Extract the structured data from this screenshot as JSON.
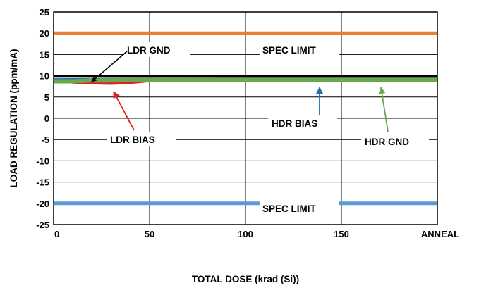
{
  "chart_data": {
    "type": "line",
    "xlabel": "TOTAL DOSE (krad (Si))",
    "ylabel": "LOAD REGULATION (ppm/mA)",
    "xlim": [
      0,
      200
    ],
    "ylim": [
      -25,
      25
    ],
    "x_ticks": [
      0,
      50,
      100,
      150,
      200
    ],
    "x_tick_labels": [
      "0",
      "50",
      "100",
      "150",
      "ANNEAL"
    ],
    "y_ticks": [
      25,
      20,
      15,
      10,
      5,
      0,
      -5,
      -10,
      -15,
      -20,
      -25
    ],
    "y_tick_labels": [
      "25",
      "20",
      "15",
      "10",
      "5",
      "0",
      "-5",
      "-10",
      "-15",
      "-20",
      "-25"
    ],
    "grid": true,
    "spec_limits": [
      {
        "value": 20,
        "color": "#ed7d31"
      },
      {
        "value": -20,
        "color": "#5b9bd5"
      }
    ],
    "series": [
      {
        "name": "HDR BIAS",
        "color": "#1f6fb5",
        "x": [
          0,
          50,
          100,
          150,
          200
        ],
        "y": [
          9.0,
          9.1,
          9.1,
          9.1,
          9.1
        ]
      },
      {
        "name": "LDR BIAS",
        "color": "#e02020",
        "x": [
          0,
          10,
          20,
          30,
          40,
          50,
          100,
          150,
          200
        ],
        "y": [
          8.9,
          8.5,
          8.3,
          8.2,
          8.4,
          8.8,
          9.0,
          9.0,
          9.0
        ]
      },
      {
        "name": "HDR GND",
        "color": "#6aa84f",
        "x": [
          0,
          10,
          20,
          30,
          40,
          50,
          100,
          150,
          200
        ],
        "y": [
          8.7,
          8.7,
          8.9,
          8.9,
          9.0,
          9.0,
          9.1,
          9.1,
          9.1
        ]
      },
      {
        "name": "LDR GND",
        "color": "#000000",
        "x": [
          0,
          50,
          100,
          150,
          200
        ],
        "y": [
          9.9,
          9.9,
          9.9,
          9.9,
          9.9
        ]
      }
    ],
    "annotations": [
      {
        "text": "LDR GND",
        "color": "#000000",
        "point": [
          22,
          9.9
        ]
      },
      {
        "text": "SPEC LIMIT",
        "color": null,
        "point": null
      },
      {
        "text": "LDR BIAS",
        "color": "#e02020",
        "point": [
          32,
          8.3
        ]
      },
      {
        "text": "HDR BIAS",
        "color": "#1f6fb5",
        "point": [
          140,
          9.1
        ]
      },
      {
        "text": "HDR GND",
        "color": "#6aa84f",
        "point": [
          170,
          9.1
        ]
      },
      {
        "text": "SPEC LIMIT",
        "color": null,
        "point": null
      }
    ]
  }
}
